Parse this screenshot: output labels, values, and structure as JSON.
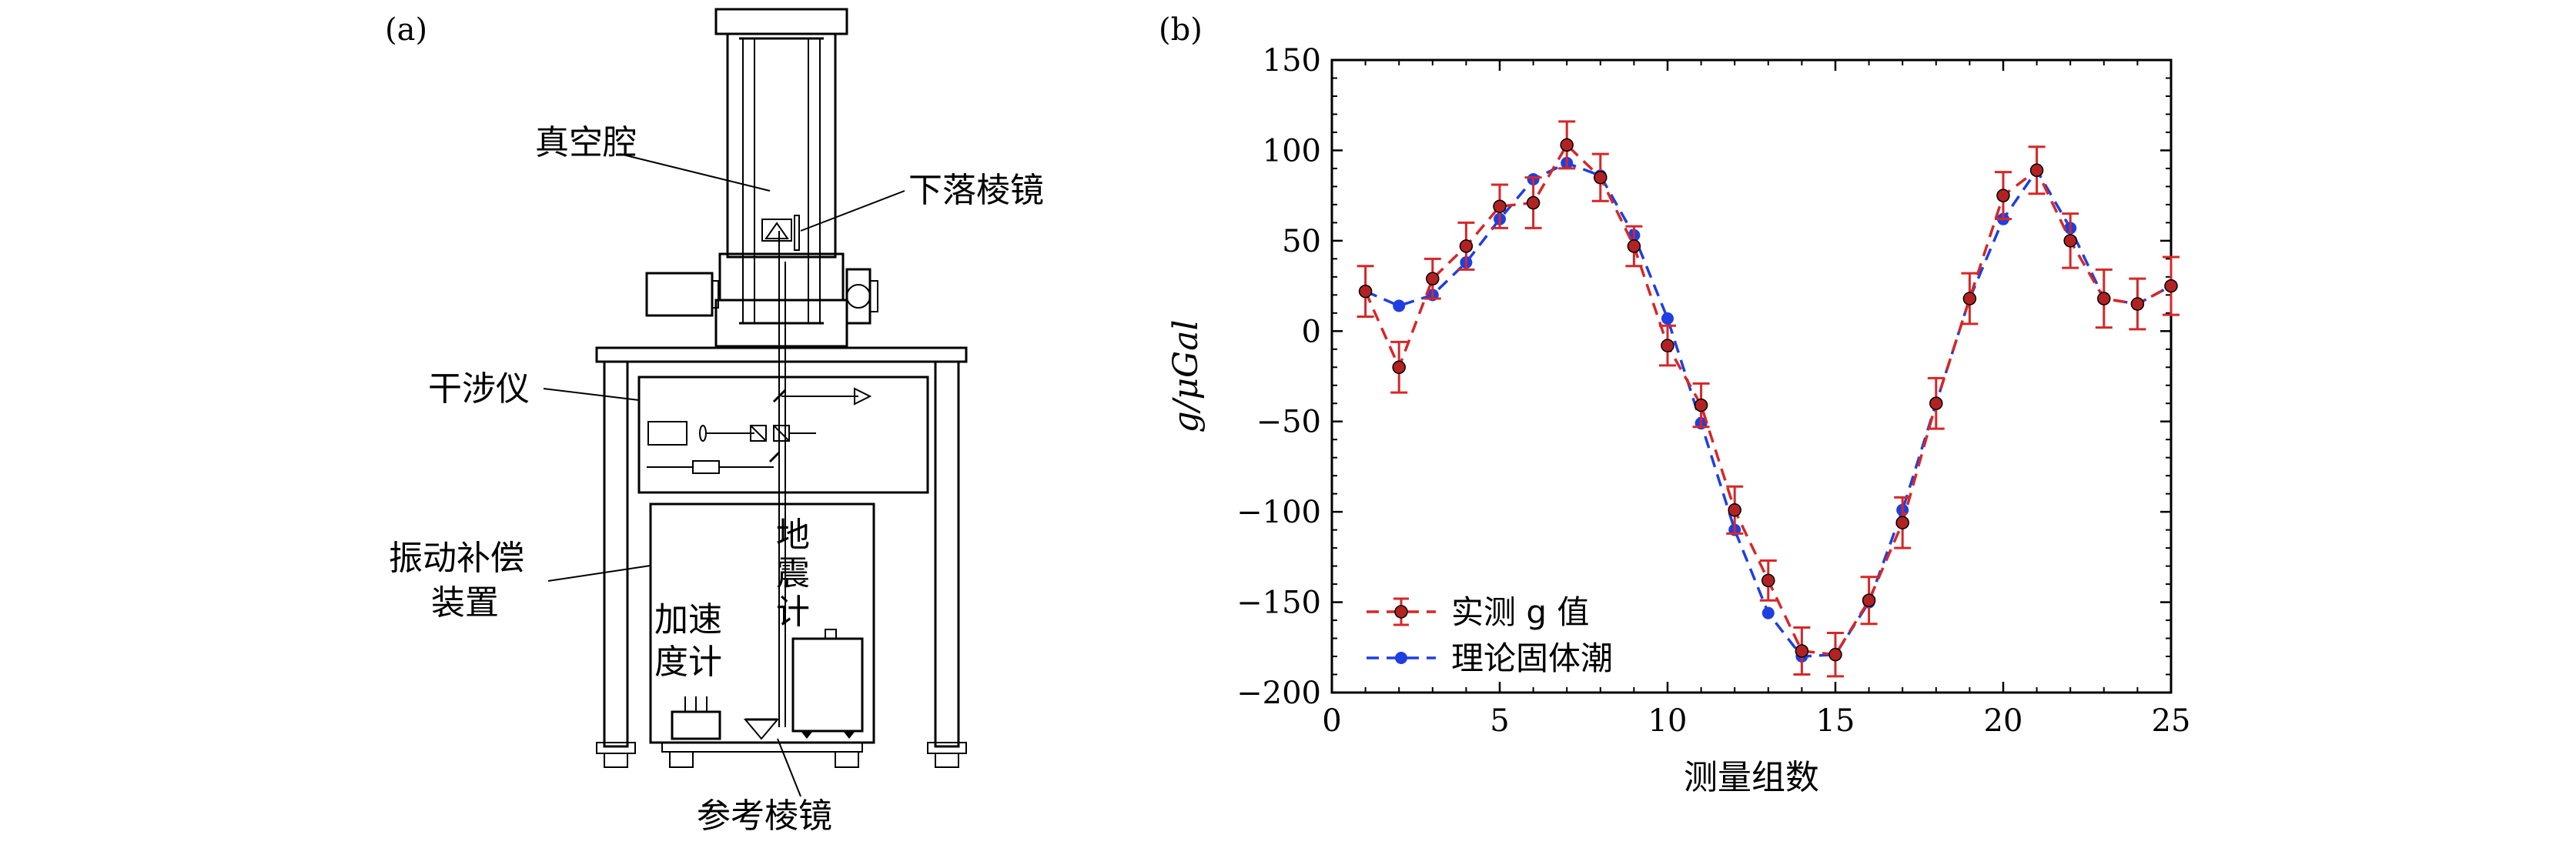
{
  "panel_a": {
    "letter": "(a)",
    "labels": {
      "vacuum_chamber": "真空腔",
      "falling_prism": "下落棱镜",
      "interferometer": "干涉仪",
      "vibration_line1": "振动补偿",
      "vibration_line2": "装置",
      "accel_line1": "加速",
      "accel_line2": "度计",
      "seis_char1": "地",
      "seis_char2": "震",
      "seis_char3": "计",
      "ref_prism": "参考棱镜"
    }
  },
  "panel_b": {
    "letter": "(b)"
  },
  "colors": {
    "measured": "#d62728",
    "theory": "#1f3fe0",
    "axes": "#000000"
  },
  "chart_data": {
    "type": "line",
    "title": "",
    "xlabel": "测量组数",
    "ylabel": "g/μGal",
    "xlim": [
      0,
      25
    ],
    "ylim": [
      -200,
      150
    ],
    "xticks": [
      0,
      5,
      10,
      15,
      20,
      25
    ],
    "yticks": [
      -200,
      -150,
      -100,
      -50,
      0,
      50,
      100,
      150
    ],
    "grid": false,
    "legend_position": "bottom-left",
    "x": [
      1,
      2,
      3,
      4,
      5,
      6,
      7,
      8,
      9,
      10,
      11,
      12,
      13,
      14,
      15,
      16,
      17,
      18,
      19,
      20,
      21,
      22,
      23,
      24,
      25
    ],
    "series": [
      {
        "name": "实测 g 值",
        "style": "dashed-errorbar",
        "values": [
          22,
          -20,
          29,
          47,
          69,
          71,
          103,
          85,
          47,
          -8,
          -41,
          -99,
          -138,
          -177,
          -179,
          -149,
          -106,
          -40,
          18,
          75,
          89,
          50,
          18,
          15,
          25
        ],
        "errors": [
          14,
          14,
          11,
          13,
          12,
          14,
          13,
          13,
          11,
          11,
          12,
          13,
          11,
          13,
          12,
          13,
          14,
          14,
          14,
          13,
          13,
          15,
          16,
          14,
          16
        ]
      },
      {
        "name": "理论固体潮",
        "style": "dashed-dots",
        "values": [
          22,
          14,
          20,
          38,
          62,
          84,
          93,
          86,
          53,
          7,
          -51,
          -110,
          -156,
          -180,
          -179,
          -150,
          -99,
          -40,
          18,
          62,
          89,
          57,
          18,
          15,
          25
        ]
      }
    ]
  }
}
